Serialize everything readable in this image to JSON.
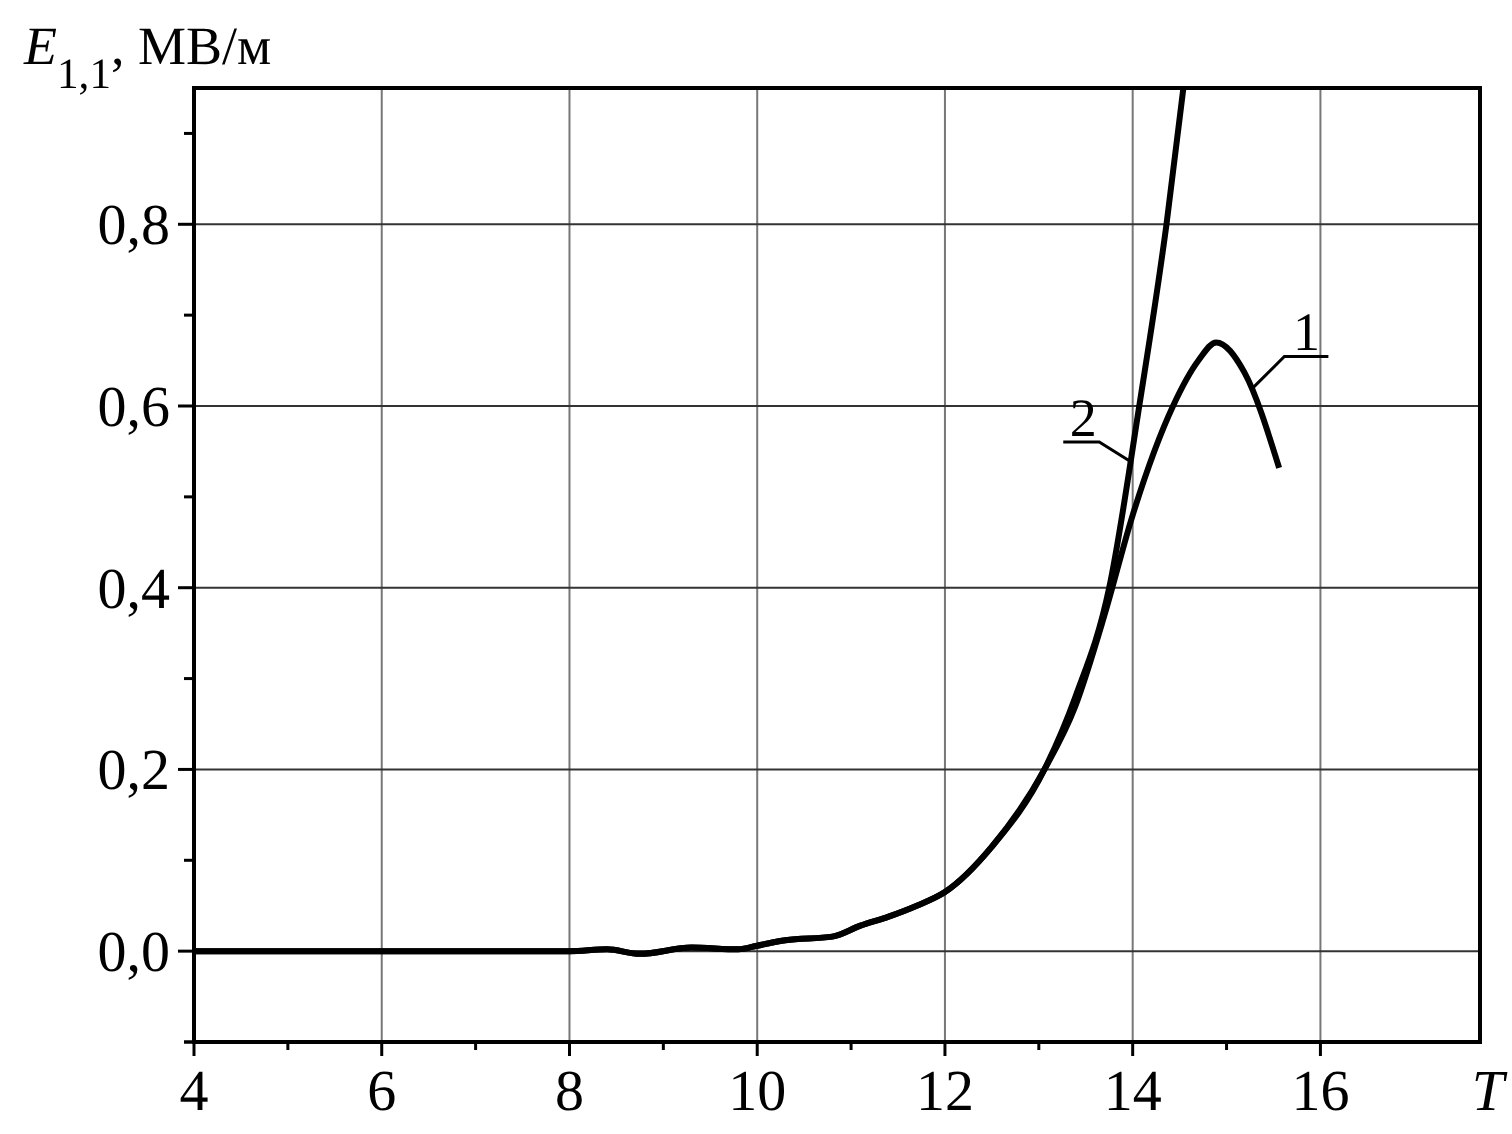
{
  "chart_data": {
    "type": "line",
    "xlabel": "T",
    "ylabel": "E$_{1,1}$, МВ/м",
    "xlim": [
      4,
      17.7
    ],
    "xticks": [
      4,
      6,
      8,
      10,
      12,
      14,
      16
    ],
    "ylim": [
      -0.1,
      0.95
    ],
    "yticks": [
      {
        "value": 0,
        "label": "0,0"
      },
      {
        "value": 0.2,
        "label": "0,2"
      },
      {
        "value": 0.4,
        "label": "0,4"
      },
      {
        "value": 0.6,
        "label": "0,6"
      },
      {
        "value": 0.8,
        "label": "0,8"
      }
    ],
    "grid": true,
    "line_style": "solid",
    "series": [
      {
        "name": "1",
        "color": "#000000",
        "x": [
          4,
          7,
          8,
          8.4,
          8.75,
          9.3,
          9.8,
          10,
          10.3,
          10.8,
          11.1,
          11.4,
          11.7,
          12,
          12.5,
          13.06,
          13.39,
          13.7,
          14,
          14.43,
          14.7,
          14.89,
          15.19,
          15.56
        ],
        "values": [
          0,
          0,
          0,
          0.002,
          -0.003,
          0.004,
          0.002,
          0.006,
          0.012,
          0.016,
          0.028,
          0.038,
          0.05,
          0.065,
          0.115,
          0.2,
          0.27,
          0.37,
          0.48,
          0.6,
          0.65,
          0.67,
          0.637,
          0.532
        ]
      },
      {
        "name": "2",
        "color": "#000000",
        "x": [
          4,
          7,
          8,
          8.4,
          8.75,
          9.3,
          9.8,
          10,
          10.3,
          10.8,
          11.1,
          11.4,
          11.7,
          12,
          12.5,
          13.06,
          13.39,
          13.75,
          14.07,
          14.36,
          14.54
        ],
        "values": [
          0,
          0,
          0,
          0.002,
          -0.003,
          0.004,
          0.002,
          0.006,
          0.012,
          0.016,
          0.028,
          0.038,
          0.05,
          0.065,
          0.115,
          0.2,
          0.28,
          0.4,
          0.6,
          0.8,
          0.95
        ]
      }
    ]
  }
}
